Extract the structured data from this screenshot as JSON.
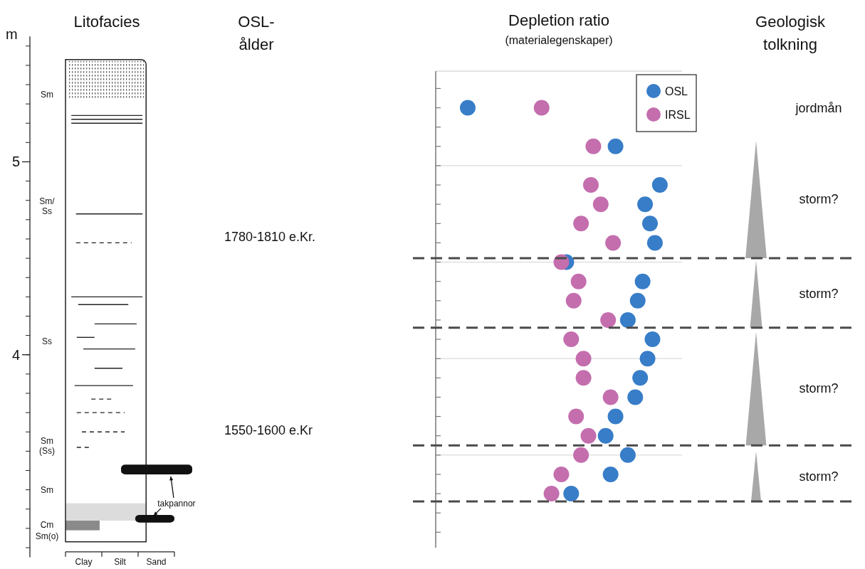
{
  "headers": {
    "litofacies": "Litofacies",
    "osl_age": [
      "OSL-",
      "ålder"
    ],
    "interpretation": [
      "Geologisk",
      "tolkning"
    ]
  },
  "depth_axis": {
    "label": "m",
    "ylim": [
      2.95,
      5.65
    ],
    "yticks": [
      4,
      5
    ],
    "minor_ticks": [
      3.0,
      3.1,
      3.2,
      3.3,
      3.4,
      3.5,
      3.6,
      3.7,
      3.8,
      3.9,
      4.0,
      4.1,
      4.2,
      4.3,
      4.4,
      4.5,
      4.6,
      4.7,
      4.8,
      4.9,
      5.0,
      5.1,
      5.2,
      5.3,
      5.4,
      5.5,
      5.6
    ]
  },
  "lithology": {
    "grain_size": [
      "Clay",
      "Silt",
      "Sand"
    ],
    "top": 5.53,
    "base": 3.03,
    "max_grain": 2.22,
    "units": [
      {
        "label": "Sm",
        "depth": 5.35
      },
      {
        "label": [
          "Sm/",
          "Ss"
        ],
        "depth": 4.77
      },
      {
        "label": "Ss",
        "depth": 4.07
      },
      {
        "label": [
          "Sm",
          "(Ss)"
        ],
        "depth": 3.53
      },
      {
        "label": "Sm",
        "depth": 3.3
      },
      {
        "label": "Cm",
        "depth": 3.12
      },
      {
        "label": "Sm(o)",
        "depth": 3.06
      }
    ],
    "soil_zone": {
      "top": 5.53,
      "base": 5.33
    },
    "gray_zone": {
      "top": 3.23,
      "base": 3.14
    },
    "clay_layer": {
      "top": 3.14,
      "base": 3.09,
      "grain": 0.94
    },
    "laminae": [
      {
        "depth": 5.24,
        "from": 0.16,
        "to": 2.12,
        "style": "solid"
      },
      {
        "depth": 5.22,
        "from": 0.16,
        "to": 2.12,
        "style": "solid"
      },
      {
        "depth": 5.2,
        "from": 0.16,
        "to": 2.12,
        "style": "solid"
      },
      {
        "depth": 4.73,
        "from": 0.29,
        "to": 2.12,
        "style": "solid"
      },
      {
        "depth": 4.58,
        "from": 0.29,
        "to": 1.82,
        "style": "dashed"
      },
      {
        "depth": 4.3,
        "from": 0.16,
        "to": 2.12,
        "style": "solid"
      },
      {
        "depth": 4.26,
        "from": 0.35,
        "to": 1.73,
        "style": "solid"
      },
      {
        "depth": 4.16,
        "from": 0.8,
        "to": 1.96,
        "style": "solid"
      },
      {
        "depth": 4.09,
        "from": 0.31,
        "to": 0.8,
        "style": "solid"
      },
      {
        "depth": 4.03,
        "from": 0.49,
        "to": 1.92,
        "style": "solid"
      },
      {
        "depth": 3.93,
        "from": 0.8,
        "to": 1.57,
        "style": "solid"
      },
      {
        "depth": 3.84,
        "from": 0.25,
        "to": 1.86,
        "style": "solid"
      },
      {
        "depth": 3.77,
        "from": 0.71,
        "to": 1.33,
        "style": "dashed"
      },
      {
        "depth": 3.7,
        "from": 0.31,
        "to": 1.63,
        "style": "dashed"
      },
      {
        "depth": 3.6,
        "from": 0.45,
        "to": 1.63,
        "style": "dashed"
      },
      {
        "depth": 3.52,
        "from": 0.31,
        "to": 0.71,
        "style": "dashed"
      }
    ],
    "tiles": {
      "label": "takpannor",
      "items": [
        {
          "top": 3.43,
          "base": 3.38,
          "from": 1.53,
          "to": 3.49
        },
        {
          "top": 3.17,
          "base": 3.13,
          "from": 1.92,
          "to": 3.0
        }
      ]
    }
  },
  "osl_ages": [
    {
      "label": "1780-1810 e.Kr.",
      "depth": 4.61
    },
    {
      "label": "1550-1600 e.Kr",
      "depth": 3.61
    }
  ],
  "chart_data": {
    "type": "scatter",
    "title": "Depletion ratio",
    "subtitle": "(materialegenskaper)",
    "xlim": [
      0,
      1
    ],
    "ylim": [
      3.0,
      5.47
    ],
    "yticks": [
      3.08,
      3.18,
      3.28,
      3.38,
      3.48,
      3.58,
      3.68,
      3.78,
      3.88,
      3.98,
      4.08,
      4.18,
      4.28,
      4.38,
      4.48,
      4.58,
      4.68,
      4.78,
      4.88,
      4.98,
      5.08,
      5.18,
      5.28,
      5.38
    ],
    "gridlines": [
      3.48,
      3.98,
      4.48,
      4.98
    ],
    "grid": true,
    "tick_labels": false,
    "legend": "top-right",
    "marker": "circle",
    "series": [
      {
        "name": "OSL",
        "color": "#377dc8",
        "x": [
          0.13,
          0.73,
          0.91,
          0.85,
          0.87,
          0.89,
          0.53,
          0.84,
          0.82,
          0.78,
          0.88,
          0.86,
          0.83,
          0.81,
          0.73,
          0.69,
          0.78,
          0.71,
          0.55
        ],
        "values": [
          5.28,
          5.08,
          4.88,
          4.78,
          4.68,
          4.58,
          4.48,
          4.38,
          4.28,
          4.18,
          4.08,
          3.98,
          3.88,
          3.78,
          3.68,
          3.58,
          3.48,
          3.38,
          3.28
        ]
      },
      {
        "name": "IRSL",
        "color": "#c46eae",
        "x": [
          0.43,
          0.64,
          0.63,
          0.67,
          0.59,
          0.72,
          0.51,
          0.58,
          0.56,
          0.7,
          0.55,
          0.6,
          0.6,
          0.71,
          0.57,
          0.62,
          0.59,
          0.51,
          0.47
        ],
        "values": [
          5.28,
          5.08,
          4.88,
          4.78,
          4.68,
          4.58,
          4.48,
          4.38,
          4.28,
          4.18,
          4.08,
          3.98,
          3.88,
          3.78,
          3.68,
          3.58,
          3.48,
          3.38,
          3.28
        ]
      }
    ]
  },
  "interpretation": {
    "boundaries": [
      4.5,
      4.14,
      3.53,
      3.24
    ],
    "zones": [
      {
        "label": "jordmån",
        "depth": 5.28
      },
      {
        "label": "storm?",
        "top": 5.11,
        "base": 4.5
      },
      {
        "label": "storm?",
        "top": 4.49,
        "base": 4.14
      },
      {
        "label": "storm?",
        "top": 4.12,
        "base": 3.53
      },
      {
        "label": "storm?",
        "top": 3.5,
        "base": 3.24
      }
    ]
  }
}
